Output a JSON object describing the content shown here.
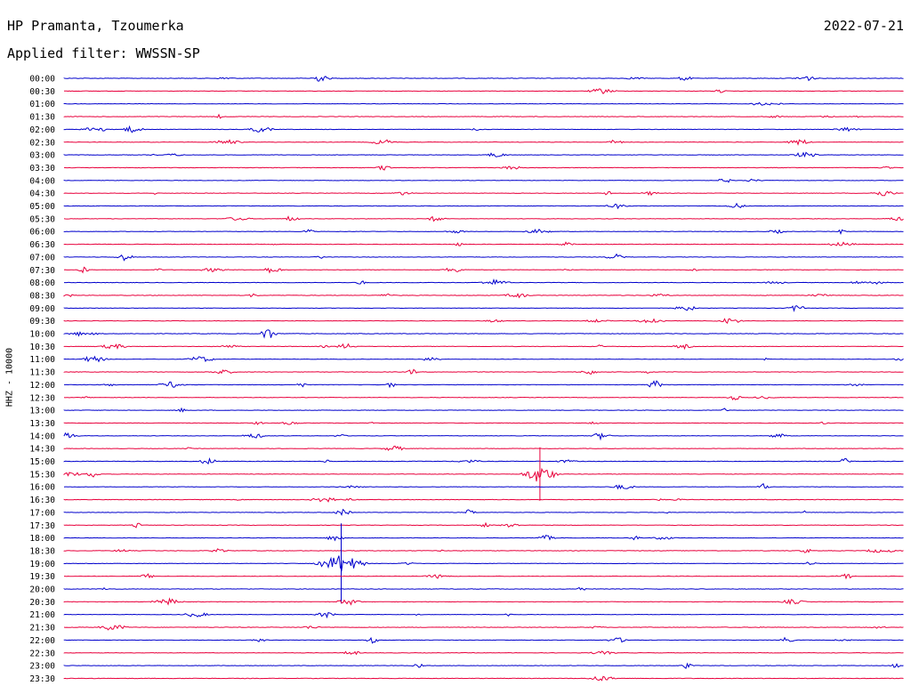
{
  "header": {
    "station": "HP Pramanta, Tzoumerka",
    "date": "2022-07-21",
    "filter": "Applied filter: WWSSN-SP"
  },
  "chart_data": {
    "type": "line",
    "title": "HP Pramanta, Tzoumerka",
    "ylabel": "HHZ - 10000",
    "trace_labels": [
      "00:00",
      "00:30",
      "01:00",
      "01:30",
      "02:00",
      "02:30",
      "03:00",
      "03:30",
      "04:00",
      "04:30",
      "05:00",
      "05:30",
      "06:00",
      "06:30",
      "07:00",
      "07:30",
      "08:00",
      "08:30",
      "09:00",
      "09:30",
      "10:00",
      "10:30",
      "11:00",
      "11:30",
      "12:00",
      "12:30",
      "13:00",
      "13:30",
      "14:00",
      "14:30",
      "15:00",
      "15:30",
      "16:00",
      "16:30",
      "17:00",
      "17:30",
      "18:00",
      "18:30",
      "19:00",
      "19:30",
      "20:00",
      "20:30",
      "21:00",
      "21:30",
      "22:00",
      "22:30",
      "23:00",
      "23:30"
    ],
    "trace_duration_minutes": 30,
    "colors": [
      "#0000cc",
      "#e8003c"
    ],
    "events": [
      {
        "trace": 15,
        "minute": 0.7,
        "amplitude": 4
      },
      {
        "trace": 20,
        "minute": 7.3,
        "amplitude": 8
      },
      {
        "trace": 24,
        "minute": 8.5,
        "amplitude": 3
      },
      {
        "trace": 24,
        "minute": 21.1,
        "amplitude": 6
      },
      {
        "trace": 31,
        "minute": 17.0,
        "amplitude": 30
      },
      {
        "trace": 34,
        "minute": 14.5,
        "amplitude": 4
      },
      {
        "trace": 38,
        "minute": 9.9,
        "amplitude": 45
      },
      {
        "trace": 32,
        "minute": 25.0,
        "amplitude": 4
      },
      {
        "trace": 30,
        "minute": 27.9,
        "amplitude": 4
      },
      {
        "trace": 47,
        "minute": 0.0,
        "amplitude": 1
      }
    ]
  }
}
